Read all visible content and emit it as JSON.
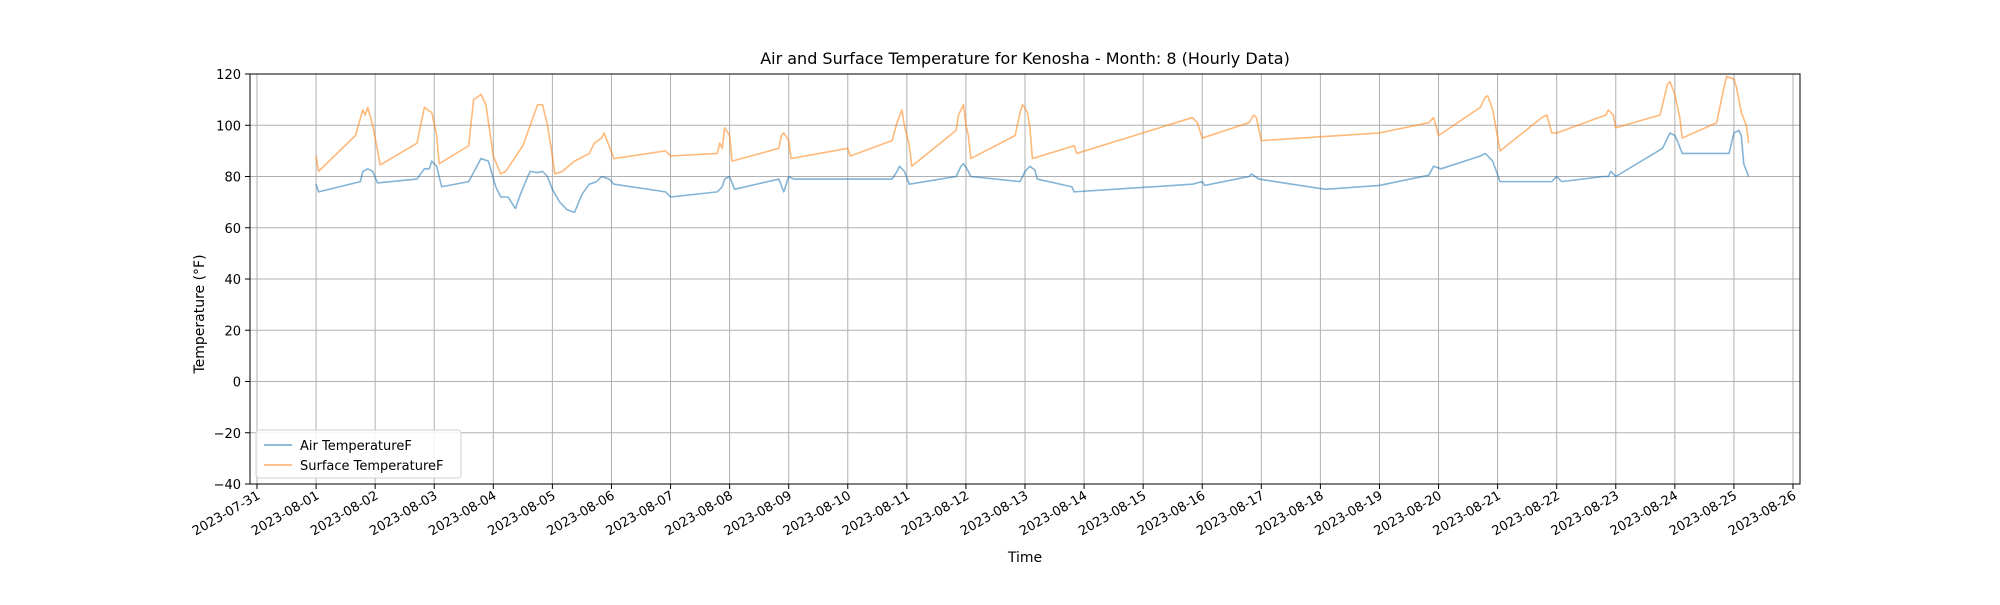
{
  "chart_data": {
    "type": "line",
    "title": "Air and Surface Temperature for Kenosha - Month: 8 (Hourly Data)",
    "xlabel": "Time",
    "ylabel": "Temperature (°F)",
    "ylim": [
      -40,
      120
    ],
    "xlim": [
      "2023-07-31T00:00",
      "2023-08-26T00:00"
    ],
    "yticks": [
      -40,
      -20,
      0,
      20,
      40,
      60,
      80,
      100,
      120
    ],
    "xticks": [
      "2023-07-31",
      "2023-08-01",
      "2023-08-02",
      "2023-08-03",
      "2023-08-04",
      "2023-08-05",
      "2023-08-06",
      "2023-08-07",
      "2023-08-08",
      "2023-08-09",
      "2023-08-10",
      "2023-08-11",
      "2023-08-12",
      "2023-08-13",
      "2023-08-14",
      "2023-08-15",
      "2023-08-16",
      "2023-08-17",
      "2023-08-18",
      "2023-08-19",
      "2023-08-20",
      "2023-08-21",
      "2023-08-22",
      "2023-08-23",
      "2023-08-24",
      "2023-08-25",
      "2023-08-26"
    ],
    "grid": true,
    "legend_position": "lower-left",
    "series": [
      {
        "name": "Air TemperatureF",
        "color": "#1f77b4",
        "points": [
          [
            "2023-08-01T00:00",
            77
          ],
          [
            "2023-08-01T01:00",
            74
          ],
          [
            "2023-08-01T18:00",
            78
          ],
          [
            "2023-08-01T19:00",
            82
          ],
          [
            "2023-08-01T21:00",
            83
          ],
          [
            "2023-08-01T23:00",
            82
          ],
          [
            "2023-08-02T01:00",
            77.5
          ],
          [
            "2023-08-02T17:00",
            79
          ],
          [
            "2023-08-02T20:00",
            83
          ],
          [
            "2023-08-02T22:00",
            83
          ],
          [
            "2023-08-02T23:00",
            86
          ],
          [
            "2023-08-03T01:00",
            84
          ],
          [
            "2023-08-03T03:00",
            76
          ],
          [
            "2023-08-03T14:00",
            78
          ],
          [
            "2023-08-03T19:00",
            87
          ],
          [
            "2023-08-03T22:00",
            86
          ],
          [
            "2023-08-04T01:00",
            76
          ],
          [
            "2023-08-04T03:00",
            72
          ],
          [
            "2023-08-04T06:00",
            72
          ],
          [
            "2023-08-04T09:00",
            67.5
          ],
          [
            "2023-08-04T11:00",
            73
          ],
          [
            "2023-08-04T14:00",
            80
          ],
          [
            "2023-08-04T15:00",
            82
          ],
          [
            "2023-08-04T18:00",
            81.5
          ],
          [
            "2023-08-04T20:00",
            82
          ],
          [
            "2023-08-04T22:00",
            80
          ],
          [
            "2023-08-05T00:00",
            75
          ],
          [
            "2023-08-05T03:00",
            70
          ],
          [
            "2023-08-05T06:00",
            67
          ],
          [
            "2023-08-05T09:00",
            66
          ],
          [
            "2023-08-05T12:00",
            73
          ],
          [
            "2023-08-05T15:00",
            77
          ],
          [
            "2023-08-05T18:00",
            78
          ],
          [
            "2023-08-05T20:00",
            80
          ],
          [
            "2023-08-05T23:00",
            79
          ],
          [
            "2023-08-06T01:00",
            77
          ],
          [
            "2023-08-06T22:00",
            74
          ],
          [
            "2023-08-07T00:00",
            72
          ],
          [
            "2023-08-07T19:00",
            74
          ],
          [
            "2023-08-07T21:00",
            76
          ],
          [
            "2023-08-07T22:00",
            79
          ],
          [
            "2023-08-08T00:00",
            80
          ],
          [
            "2023-08-08T02:00",
            75
          ],
          [
            "2023-08-08T20:00",
            79
          ],
          [
            "2023-08-08T22:00",
            74
          ],
          [
            "2023-08-09T00:00",
            80
          ],
          [
            "2023-08-09T02:00",
            79
          ],
          [
            "2023-08-10T00:00",
            79
          ],
          [
            "2023-08-10T18:00",
            79
          ],
          [
            "2023-08-10T20:00",
            82
          ],
          [
            "2023-08-10T21:00",
            84
          ],
          [
            "2023-08-10T23:00",
            82
          ],
          [
            "2023-08-11T01:00",
            77
          ],
          [
            "2023-08-11T20:00",
            80
          ],
          [
            "2023-08-11T22:00",
            84
          ],
          [
            "2023-08-11T23:00",
            85
          ],
          [
            "2023-08-12T01:00",
            82
          ],
          [
            "2023-08-12T02:00",
            80
          ],
          [
            "2023-08-12T22:00",
            78
          ],
          [
            "2023-08-13T00:00",
            82
          ],
          [
            "2023-08-13T02:00",
            84
          ],
          [
            "2023-08-13T04:00",
            82.5
          ],
          [
            "2023-08-13T05:00",
            79
          ],
          [
            "2023-08-13T19:00",
            76
          ],
          [
            "2023-08-13T20:00",
            74
          ],
          [
            "2023-08-15T20:00",
            77
          ],
          [
            "2023-08-16T00:00",
            78
          ],
          [
            "2023-08-16T01:00",
            76.5
          ],
          [
            "2023-08-16T19:00",
            80
          ],
          [
            "2023-08-16T20:00",
            81
          ],
          [
            "2023-08-16T23:00",
            79
          ],
          [
            "2023-08-18T02:00",
            75
          ],
          [
            "2023-08-19T00:00",
            76.5
          ],
          [
            "2023-08-19T20:00",
            80.5
          ],
          [
            "2023-08-19T22:00",
            84
          ],
          [
            "2023-08-20T01:00",
            83
          ],
          [
            "2023-08-20T17:00",
            88
          ],
          [
            "2023-08-20T19:00",
            89
          ],
          [
            "2023-08-20T22:00",
            86
          ],
          [
            "2023-08-21T01:00",
            78
          ],
          [
            "2023-08-21T22:00",
            78
          ],
          [
            "2023-08-22T00:00",
            80
          ],
          [
            "2023-08-22T02:00",
            78
          ],
          [
            "2023-08-22T19:00",
            80
          ],
          [
            "2023-08-22T21:00",
            80
          ],
          [
            "2023-08-22T22:00",
            82
          ],
          [
            "2023-08-23T00:00",
            80
          ],
          [
            "2023-08-23T19:00",
            91
          ],
          [
            "2023-08-23T22:00",
            97
          ],
          [
            "2023-08-24T00:00",
            96
          ],
          [
            "2023-08-24T01:00",
            94
          ],
          [
            "2023-08-24T03:00",
            89
          ],
          [
            "2023-08-24T22:00",
            89
          ],
          [
            "2023-08-25T00:00",
            97
          ],
          [
            "2023-08-25T02:00",
            98
          ],
          [
            "2023-08-25T03:00",
            96
          ],
          [
            "2023-08-25T04:00",
            85
          ],
          [
            "2023-08-25T06:00",
            80
          ]
        ]
      },
      {
        "name": "Surface TemperatureF",
        "color": "#ff7f0e",
        "points": [
          [
            "2023-08-01T00:00",
            88
          ],
          [
            "2023-08-01T01:00",
            82
          ],
          [
            "2023-08-01T16:00",
            96
          ],
          [
            "2023-08-01T19:00",
            106
          ],
          [
            "2023-08-01T20:00",
            104
          ],
          [
            "2023-08-01T21:00",
            107
          ],
          [
            "2023-08-01T23:00",
            100
          ],
          [
            "2023-08-02T01:00",
            90
          ],
          [
            "2023-08-02T02:00",
            84.5
          ],
          [
            "2023-08-02T17:00",
            93
          ],
          [
            "2023-08-02T20:00",
            107
          ],
          [
            "2023-08-02T22:00",
            105.5
          ],
          [
            "2023-08-02T23:00",
            105
          ],
          [
            "2023-08-03T01:00",
            96
          ],
          [
            "2023-08-03T02:00",
            85
          ],
          [
            "2023-08-03T14:00",
            92
          ],
          [
            "2023-08-03T16:00",
            110
          ],
          [
            "2023-08-03T19:00",
            112
          ],
          [
            "2023-08-03T21:00",
            108
          ],
          [
            "2023-08-04T00:00",
            88
          ],
          [
            "2023-08-04T03:00",
            81
          ],
          [
            "2023-08-04T05:00",
            82
          ],
          [
            "2023-08-04T12:00",
            92
          ],
          [
            "2023-08-04T15:00",
            100
          ],
          [
            "2023-08-04T18:00",
            108
          ],
          [
            "2023-08-04T20:00",
            108
          ],
          [
            "2023-08-04T22:00",
            100
          ],
          [
            "2023-08-05T00:00",
            88
          ],
          [
            "2023-08-05T01:00",
            81
          ],
          [
            "2023-08-05T04:00",
            82
          ],
          [
            "2023-08-05T09:00",
            86
          ],
          [
            "2023-08-05T15:00",
            89
          ],
          [
            "2023-08-05T17:00",
            93
          ],
          [
            "2023-08-05T20:00",
            95
          ],
          [
            "2023-08-05T21:00",
            97
          ],
          [
            "2023-08-05T23:00",
            92
          ],
          [
            "2023-08-06T01:00",
            87
          ],
          [
            "2023-08-06T22:00",
            90
          ],
          [
            "2023-08-07T00:00",
            88
          ],
          [
            "2023-08-07T19:00",
            89
          ],
          [
            "2023-08-07T20:00",
            93
          ],
          [
            "2023-08-07T21:00",
            91
          ],
          [
            "2023-08-07T22:00",
            99
          ],
          [
            "2023-08-08T00:00",
            96
          ],
          [
            "2023-08-08T01:00",
            86
          ],
          [
            "2023-08-08T20:00",
            91
          ],
          [
            "2023-08-08T21:00",
            96
          ],
          [
            "2023-08-08T22:00",
            97
          ],
          [
            "2023-08-09T00:00",
            94
          ],
          [
            "2023-08-09T01:00",
            87
          ],
          [
            "2023-08-10T00:00",
            91
          ],
          [
            "2023-08-10T01:00",
            88
          ],
          [
            "2023-08-10T18:00",
            94
          ],
          [
            "2023-08-10T20:00",
            101
          ],
          [
            "2023-08-10T22:00",
            106
          ],
          [
            "2023-08-10T23:00",
            100
          ],
          [
            "2023-08-11T01:00",
            92
          ],
          [
            "2023-08-11T02:00",
            84
          ],
          [
            "2023-08-11T20:00",
            98
          ],
          [
            "2023-08-11T21:00",
            104
          ],
          [
            "2023-08-11T23:00",
            108
          ],
          [
            "2023-08-12T00:00",
            100
          ],
          [
            "2023-08-12T01:00",
            96
          ],
          [
            "2023-08-12T02:00",
            87
          ],
          [
            "2023-08-12T20:00",
            96
          ],
          [
            "2023-08-12T22:00",
            105
          ],
          [
            "2023-08-12T23:00",
            108
          ],
          [
            "2023-08-13T01:00",
            105
          ],
          [
            "2023-08-13T02:00",
            99
          ],
          [
            "2023-08-13T03:00",
            87
          ],
          [
            "2023-08-13T20:00",
            92
          ],
          [
            "2023-08-13T21:00",
            89
          ],
          [
            "2023-08-15T20:00",
            103
          ],
          [
            "2023-08-15T22:00",
            101
          ],
          [
            "2023-08-16T00:00",
            95
          ],
          [
            "2023-08-16T19:00",
            101
          ],
          [
            "2023-08-16T21:00",
            104
          ],
          [
            "2023-08-16T22:00",
            103
          ],
          [
            "2023-08-17T00:00",
            94
          ],
          [
            "2023-08-19T00:00",
            97
          ],
          [
            "2023-08-19T20:00",
            101
          ],
          [
            "2023-08-19T22:00",
            103
          ],
          [
            "2023-08-20T00:00",
            96
          ],
          [
            "2023-08-20T17:00",
            107
          ],
          [
            "2023-08-20T19:00",
            111
          ],
          [
            "2023-08-20T20:00",
            111.5
          ],
          [
            "2023-08-20T22:00",
            106
          ],
          [
            "2023-08-21T01:00",
            90
          ],
          [
            "2023-08-21T18:00",
            103
          ],
          [
            "2023-08-21T20:00",
            104
          ],
          [
            "2023-08-21T22:00",
            97
          ],
          [
            "2023-08-22T00:00",
            97
          ],
          [
            "2023-08-22T20:00",
            104
          ],
          [
            "2023-08-22T21:00",
            106
          ],
          [
            "2023-08-22T23:00",
            104
          ],
          [
            "2023-08-23T00:00",
            99
          ],
          [
            "2023-08-23T18:00",
            104
          ],
          [
            "2023-08-23T21:00",
            116
          ],
          [
            "2023-08-23T22:00",
            117
          ],
          [
            "2023-08-24T00:00",
            112
          ],
          [
            "2023-08-24T02:00",
            103
          ],
          [
            "2023-08-24T03:00",
            95
          ],
          [
            "2023-08-24T17:00",
            101
          ],
          [
            "2023-08-24T20:00",
            115
          ],
          [
            "2023-08-24T21:00",
            119
          ],
          [
            "2023-08-25T00:00",
            118
          ],
          [
            "2023-08-25T01:00",
            115
          ],
          [
            "2023-08-25T03:00",
            105
          ],
          [
            "2023-08-25T05:00",
            100
          ],
          [
            "2023-08-25T06:00",
            93
          ]
        ]
      }
    ]
  }
}
